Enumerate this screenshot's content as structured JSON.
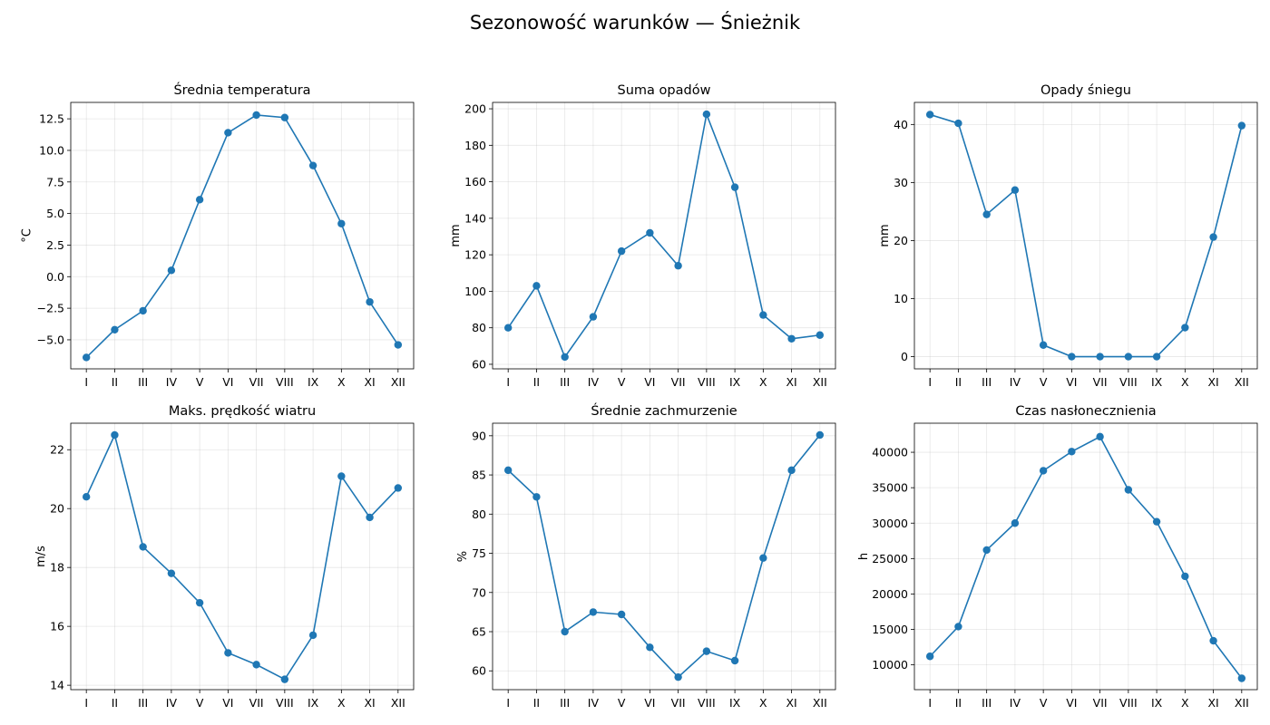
{
  "figure": {
    "title": "Sezonowość warunków — Śnieżnik",
    "line_color": "#1f77b4",
    "grid": true
  },
  "chart_data": [
    {
      "type": "line",
      "title": "Średnia temperatura",
      "ylabel": "°C",
      "categories": [
        "I",
        "II",
        "III",
        "IV",
        "V",
        "VI",
        "VII",
        "VIII",
        "IX",
        "X",
        "XI",
        "XII"
      ],
      "values": [
        -6.4,
        -4.2,
        -2.7,
        0.5,
        6.1,
        11.4,
        12.8,
        12.6,
        8.8,
        4.2,
        -2.0,
        -5.4
      ],
      "ylim": [
        -7.3,
        13.8
      ],
      "yticks": [
        -5.0,
        -2.5,
        0.0,
        2.5,
        5.0,
        7.5,
        10.0,
        12.5
      ],
      "ytick_labels": [
        "−5.0",
        "−2.5",
        "0.0",
        "2.5",
        "5.0",
        "7.5",
        "10.0",
        "12.5"
      ]
    },
    {
      "type": "line",
      "title": "Suma opadów",
      "ylabel": "mm",
      "categories": [
        "I",
        "II",
        "III",
        "IV",
        "V",
        "VI",
        "VII",
        "VIII",
        "IX",
        "X",
        "XI",
        "XII"
      ],
      "values": [
        80,
        103,
        64,
        86,
        122,
        132,
        114,
        197,
        157,
        87,
        74,
        76
      ],
      "ylim": [
        57.5,
        203.5
      ],
      "yticks": [
        60,
        80,
        100,
        120,
        140,
        160,
        180,
        200
      ],
      "ytick_labels": [
        "60",
        "80",
        "100",
        "120",
        "140",
        "160",
        "180",
        "200"
      ]
    },
    {
      "type": "line",
      "title": "Opady śniegu",
      "ylabel": "mm",
      "categories": [
        "I",
        "II",
        "III",
        "IV",
        "V",
        "VI",
        "VII",
        "VIII",
        "IX",
        "X",
        "XI",
        "XII"
      ],
      "values": [
        41.7,
        40.2,
        24.5,
        28.7,
        2.0,
        0,
        0,
        0,
        0,
        5.0,
        20.6,
        39.8
      ],
      "ylim": [
        -2.1,
        43.8
      ],
      "yticks": [
        0,
        10,
        20,
        30,
        40
      ],
      "ytick_labels": [
        "0",
        "10",
        "20",
        "30",
        "40"
      ]
    },
    {
      "type": "line",
      "title": "Maks. prędkość wiatru",
      "ylabel": "m/s",
      "categories": [
        "I",
        "II",
        "III",
        "IV",
        "V",
        "VI",
        "VII",
        "VIII",
        "IX",
        "X",
        "XI",
        "XII"
      ],
      "values": [
        20.4,
        22.5,
        18.7,
        17.8,
        16.8,
        15.1,
        14.7,
        14.2,
        15.7,
        21.1,
        19.7,
        20.7
      ],
      "ylim": [
        13.85,
        22.9
      ],
      "yticks": [
        14,
        16,
        18,
        20,
        22
      ],
      "ytick_labels": [
        "14",
        "16",
        "18",
        "20",
        "22"
      ]
    },
    {
      "type": "line",
      "title": "Średnie zachmurzenie",
      "ylabel": "%",
      "categories": [
        "I",
        "II",
        "III",
        "IV",
        "V",
        "VI",
        "VII",
        "VIII",
        "IX",
        "X",
        "XI",
        "XII"
      ],
      "values": [
        85.6,
        82.2,
        65.0,
        67.5,
        67.2,
        63.0,
        59.2,
        62.5,
        61.3,
        74.4,
        85.6,
        90.1
      ],
      "ylim": [
        57.6,
        91.6
      ],
      "yticks": [
        60,
        65,
        70,
        75,
        80,
        85,
        90
      ],
      "ytick_labels": [
        "60",
        "65",
        "70",
        "75",
        "80",
        "85",
        "90"
      ]
    },
    {
      "type": "line",
      "title": "Czas nasłonecznienia",
      "ylabel": "h",
      "categories": [
        "I",
        "II",
        "III",
        "IV",
        "V",
        "VI",
        "VII",
        "VIII",
        "IX",
        "X",
        "XI",
        "XII"
      ],
      "values": [
        11200,
        15400,
        26200,
        30000,
        37400,
        40100,
        42200,
        34700,
        30200,
        22500,
        13400,
        8100
      ],
      "ylim": [
        6500,
        44100
      ],
      "yticks": [
        10000,
        15000,
        20000,
        25000,
        30000,
        35000,
        40000
      ],
      "ytick_labels": [
        "10000",
        "15000",
        "20000",
        "25000",
        "30000",
        "35000",
        "40000"
      ]
    }
  ]
}
